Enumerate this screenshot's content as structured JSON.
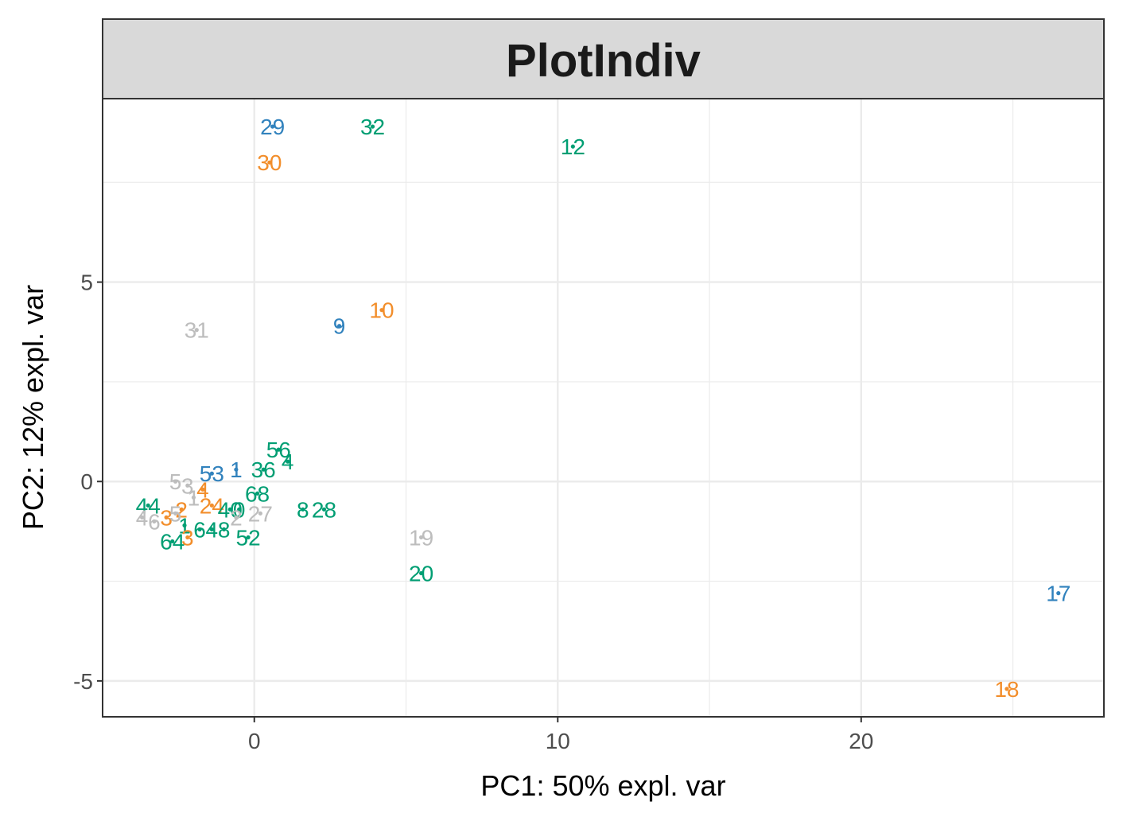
{
  "chart_data": {
    "type": "scatter",
    "title": "PlotIndiv",
    "xlabel": "PC1: 50% expl. var",
    "ylabel": "PC2: 12% expl. var",
    "xlim": [
      -5,
      28
    ],
    "ylim": [
      -5.9,
      9.6
    ],
    "x_ticks": [
      0,
      10,
      20
    ],
    "x_tick_labels": [
      "0",
      "10",
      "20"
    ],
    "y_ticks": [
      -5,
      0,
      5
    ],
    "y_tick_labels": [
      "-5",
      "0",
      "5"
    ],
    "x_minor_gridlines": [
      -5,
      5,
      15,
      25
    ],
    "y_minor_gridlines": [
      -2.5,
      2.5,
      7.5
    ],
    "grid": true,
    "legend": "none",
    "groups": {
      "blue": "#3182bd",
      "orange": "#f28e2b",
      "green": "#009e73",
      "gray": "#bdbdbd"
    },
    "points": [
      {
        "label": "29",
        "x": 0.6,
        "y": 8.9,
        "group": "blue"
      },
      {
        "label": "32",
        "x": 3.9,
        "y": 8.9,
        "group": "green"
      },
      {
        "label": "12",
        "x": 10.5,
        "y": 8.4,
        "group": "green"
      },
      {
        "label": "30",
        "x": 0.5,
        "y": 8.0,
        "group": "orange"
      },
      {
        "label": "10",
        "x": 4.2,
        "y": 4.3,
        "group": "orange"
      },
      {
        "label": "9",
        "x": 2.8,
        "y": 3.9,
        "group": "blue"
      },
      {
        "label": "31",
        "x": -1.9,
        "y": 3.8,
        "group": "gray"
      },
      {
        "label": "56",
        "x": 0.8,
        "y": 0.8,
        "group": "green"
      },
      {
        "label": "4",
        "x": 1.1,
        "y": 0.5,
        "group": "green"
      },
      {
        "label": "1",
        "x": -0.6,
        "y": 0.3,
        "group": "blue"
      },
      {
        "label": "36",
        "x": 0.3,
        "y": 0.3,
        "group": "green"
      },
      {
        "label": "53",
        "x": -1.4,
        "y": 0.2,
        "group": "blue"
      },
      {
        "label": "68",
        "x": 0.1,
        "y": -0.3,
        "group": "green"
      },
      {
        "label": "8",
        "x": 1.6,
        "y": -0.7,
        "group": "green"
      },
      {
        "label": "28",
        "x": 2.3,
        "y": -0.7,
        "group": "green"
      },
      {
        "label": "27",
        "x": 0.2,
        "y": -0.8,
        "group": "gray"
      },
      {
        "label": "19",
        "x": 5.5,
        "y": -1.4,
        "group": "gray"
      },
      {
        "label": "52",
        "x": -0.2,
        "y": -1.4,
        "group": "green"
      },
      {
        "label": "20",
        "x": 5.5,
        "y": -2.3,
        "group": "green"
      },
      {
        "label": "17",
        "x": 26.5,
        "y": -2.8,
        "group": "blue"
      },
      {
        "label": "18",
        "x": 24.8,
        "y": -5.2,
        "group": "orange"
      },
      {
        "label": "5",
        "x": -2.6,
        "y": 0.0,
        "group": "gray"
      },
      {
        "label": "3",
        "x": -2.2,
        "y": -0.1,
        "group": "gray"
      },
      {
        "label": "4",
        "x": -1.7,
        "y": -0.2,
        "group": "orange"
      },
      {
        "label": "44",
        "x": -3.5,
        "y": -0.6,
        "group": "green"
      },
      {
        "label": "4",
        "x": -3.7,
        "y": -0.9,
        "group": "gray"
      },
      {
        "label": "6",
        "x": -3.3,
        "y": -1.0,
        "group": "gray"
      },
      {
        "label": "3",
        "x": -2.9,
        "y": -0.9,
        "group": "orange"
      },
      {
        "label": "2",
        "x": -2.4,
        "y": -0.7,
        "group": "orange"
      },
      {
        "label": "24",
        "x": -1.4,
        "y": -0.6,
        "group": "orange"
      },
      {
        "label": "40",
        "x": -0.8,
        "y": -0.7,
        "group": "green"
      },
      {
        "label": "0",
        "x": -0.5,
        "y": -0.7,
        "group": "green"
      },
      {
        "label": "2",
        "x": -0.6,
        "y": -0.9,
        "group": "gray"
      },
      {
        "label": "1",
        "x": -2.3,
        "y": -1.1,
        "group": "green"
      },
      {
        "label": "6",
        "x": -1.8,
        "y": -1.2,
        "group": "green"
      },
      {
        "label": "4",
        "x": -1.4,
        "y": -1.2,
        "group": "green"
      },
      {
        "label": "8",
        "x": -1.0,
        "y": -1.2,
        "group": "green"
      },
      {
        "label": "64",
        "x": -2.7,
        "y": -1.5,
        "group": "green"
      },
      {
        "label": "3",
        "x": -2.2,
        "y": -1.4,
        "group": "orange"
      },
      {
        "label": "1",
        "x": -2.0,
        "y": -0.4,
        "group": "gray"
      },
      {
        "label": "5",
        "x": -2.6,
        "y": -0.8,
        "group": "gray"
      }
    ]
  }
}
